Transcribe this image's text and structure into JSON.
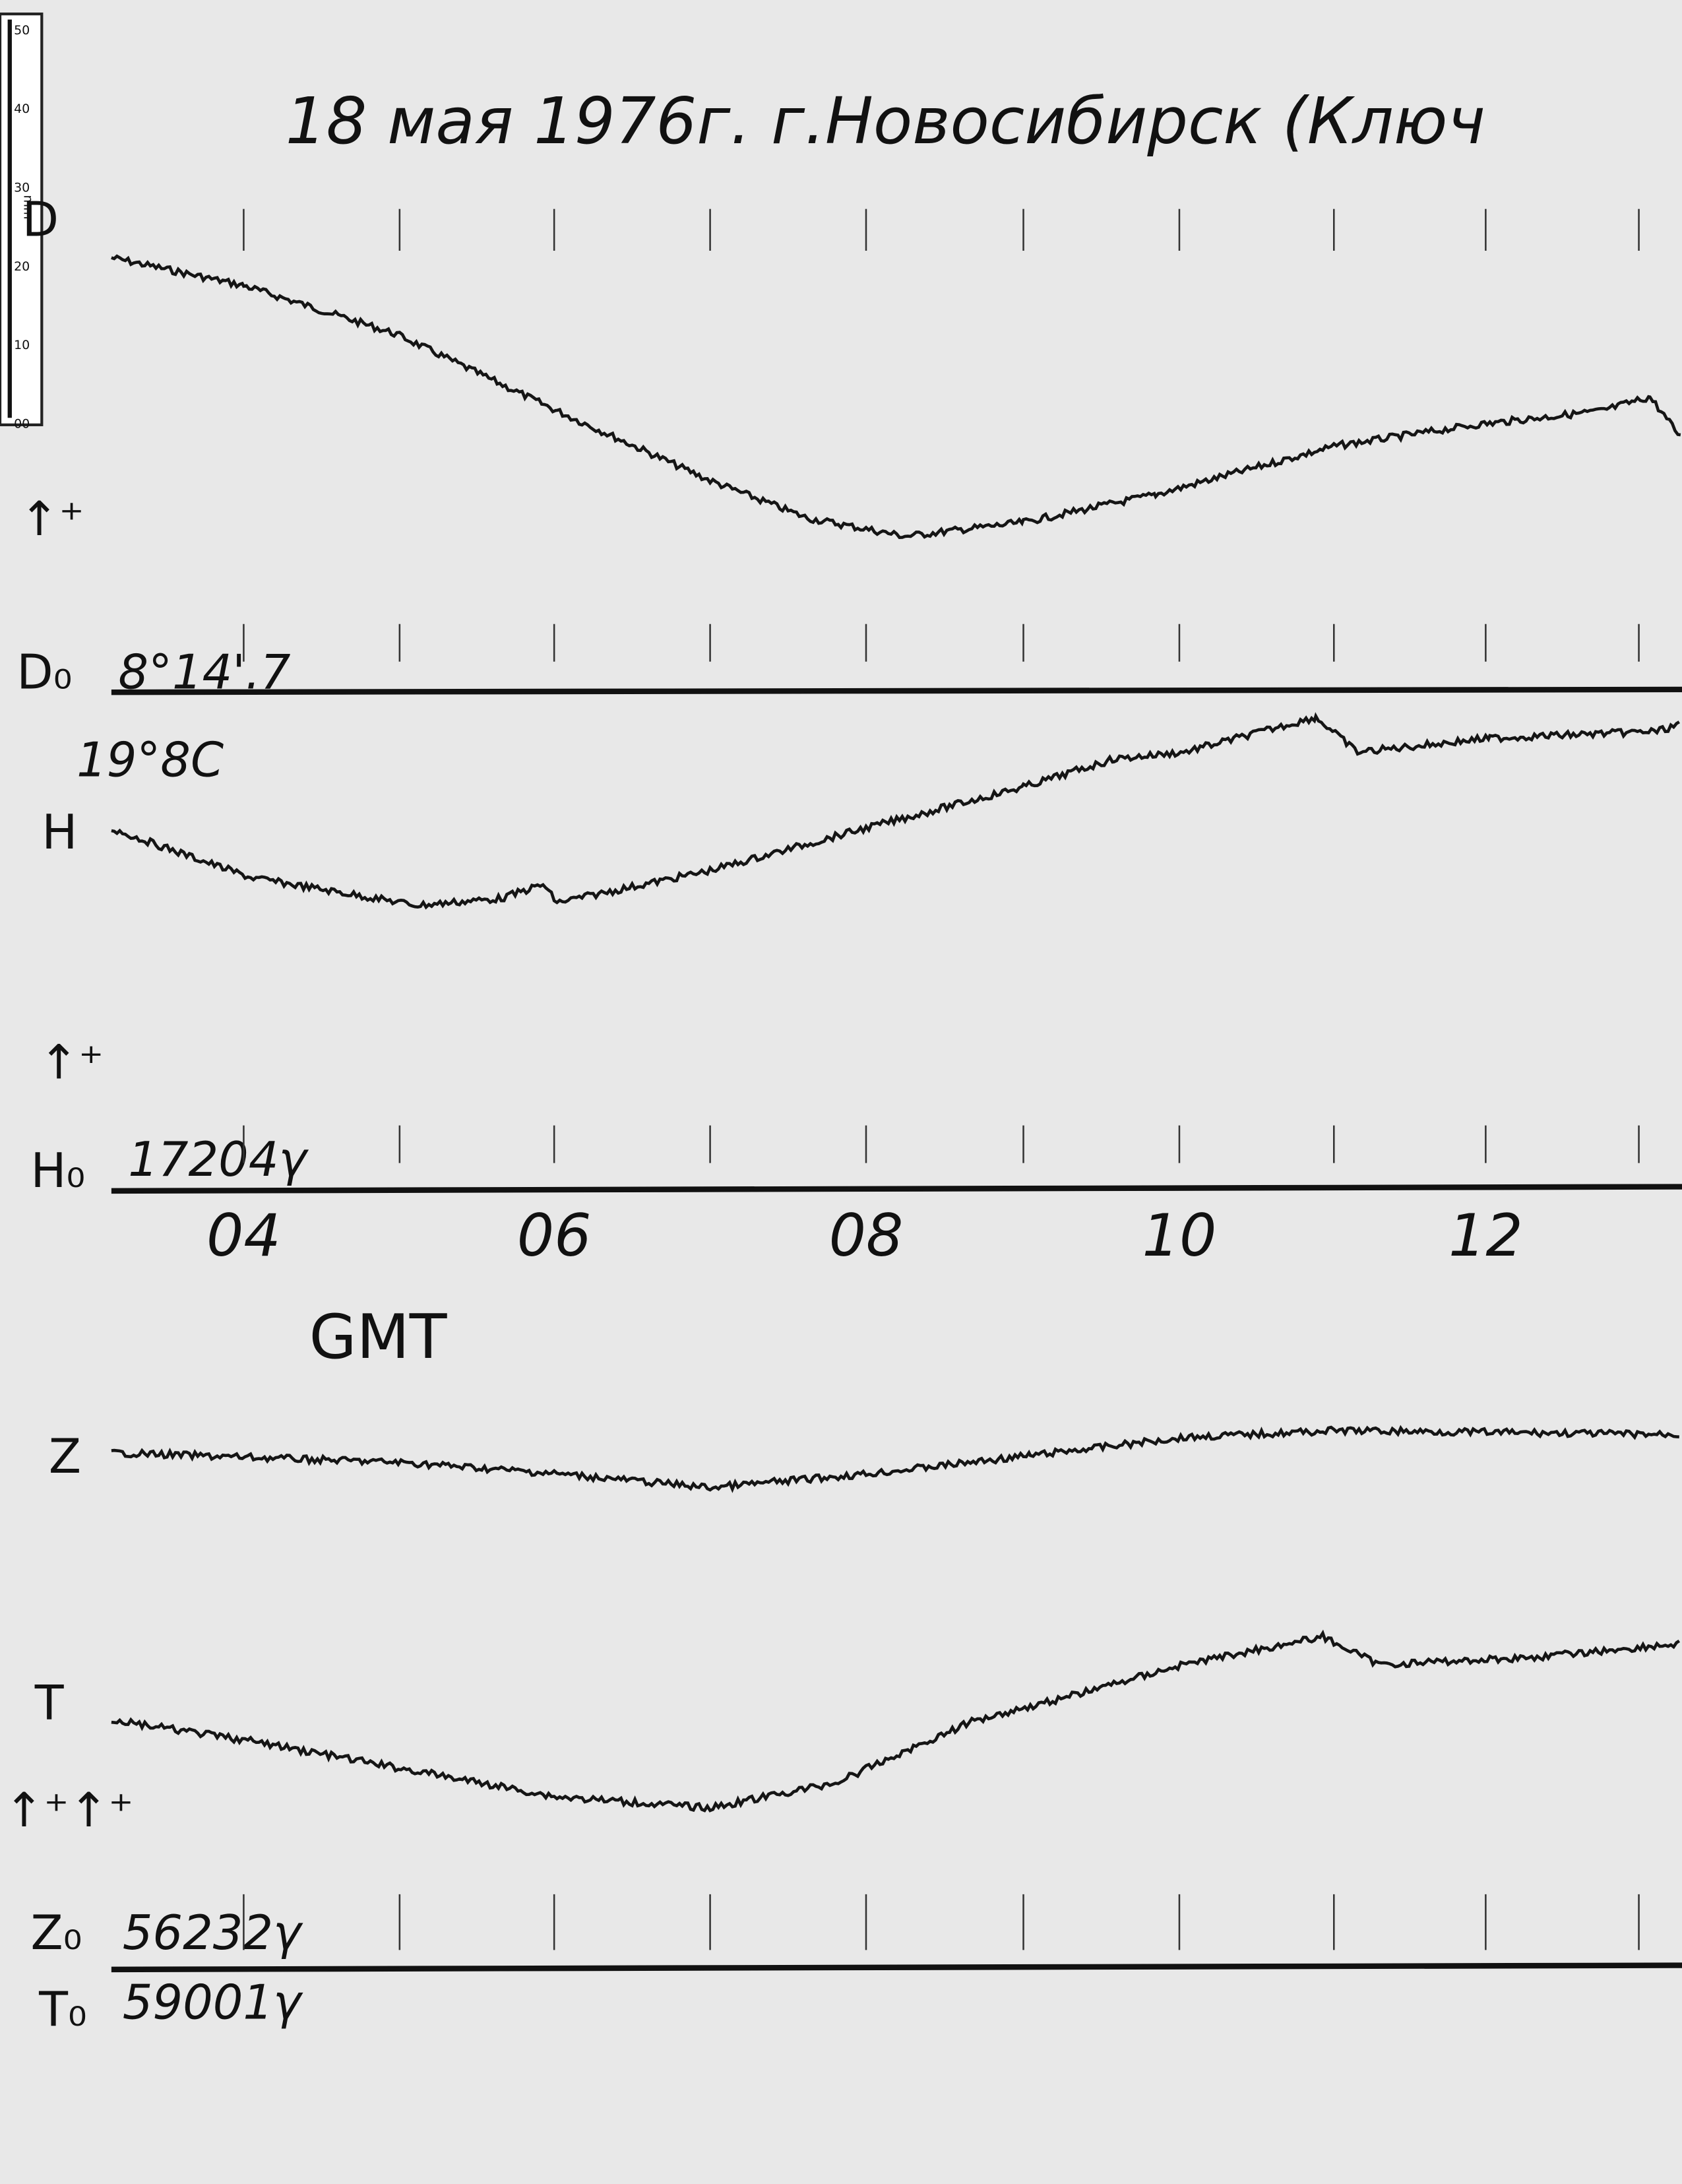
{
  "header": {
    "title": "18 мая 1976г.  г.Новосибирск (Ключ"
  },
  "ruler": {
    "labels": [
      "50",
      "40",
      "30",
      "20",
      "10",
      "00"
    ],
    "unit": "mm"
  },
  "traces": {
    "d": {
      "label": "D",
      "baseline_label": "D₀",
      "baseline_value": "8°14'.7"
    },
    "h": {
      "label": "H",
      "temperature": "19°8C",
      "baseline_label": "H₀",
      "baseline_value": "17204γ"
    },
    "z": {
      "label": "Z",
      "baseline_label": "Z₀",
      "baseline_value": "56232γ"
    },
    "t": {
      "label": "T",
      "baseline_label": "T₀",
      "baseline_value": "59001γ"
    }
  },
  "time_axis": {
    "labels": [
      "04",
      "06",
      "08",
      "10",
      "12"
    ],
    "unit_label": "GMT"
  }
}
